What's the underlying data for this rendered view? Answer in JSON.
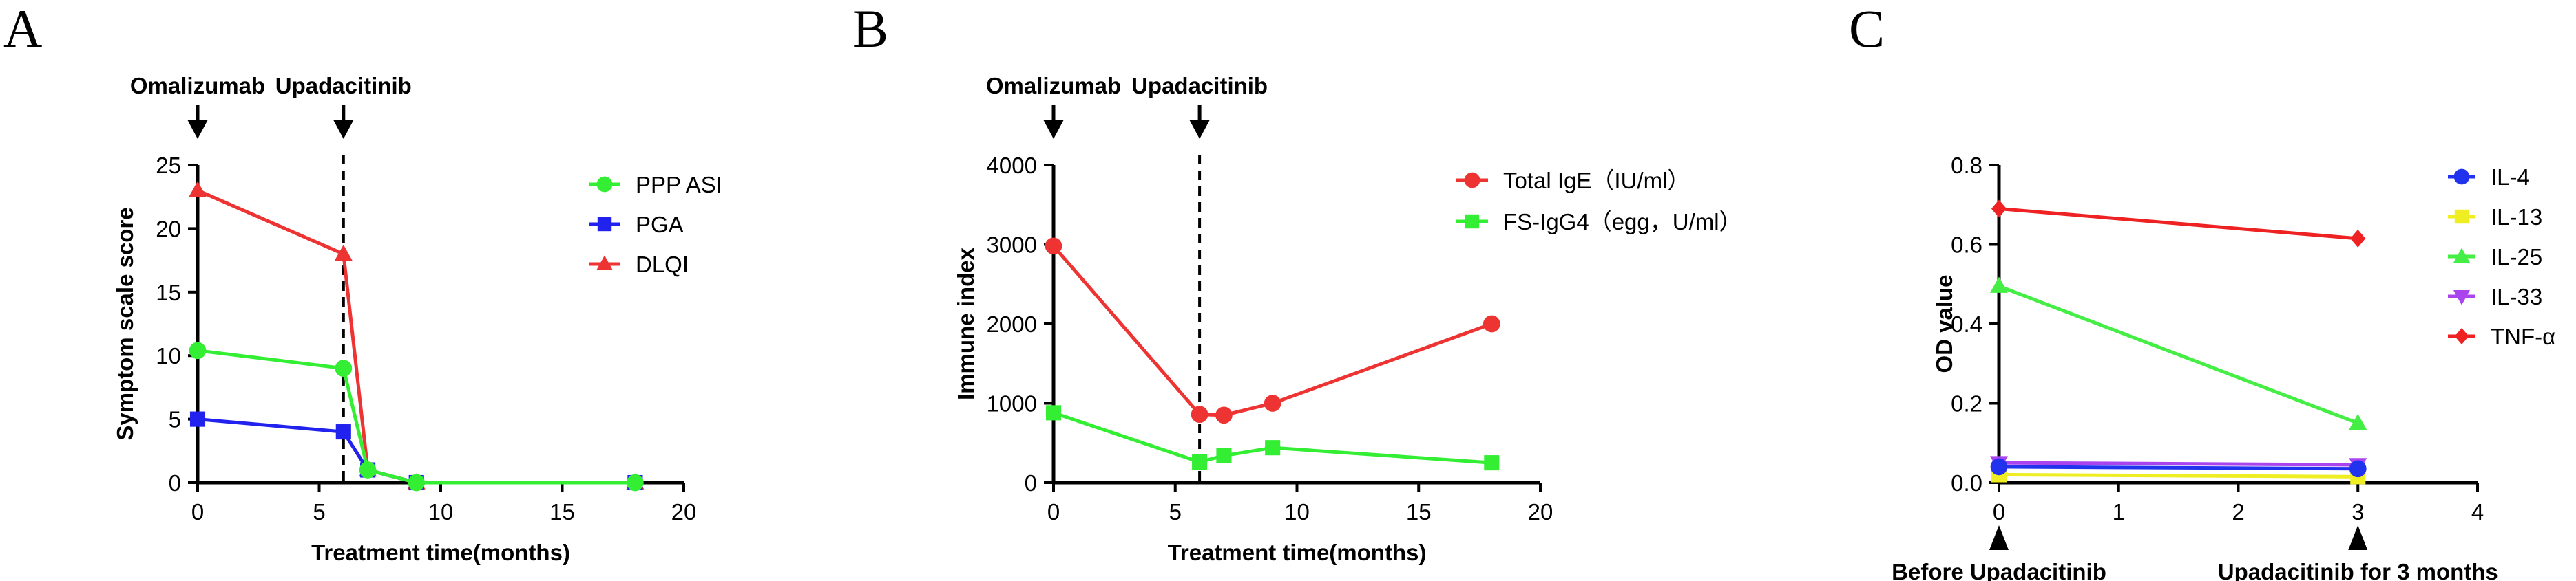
{
  "chart_data": [
    {
      "panel": "A",
      "type": "line",
      "xlabel": "Treatment time(months)",
      "ylabel": "Symptom scale score",
      "xlim": [
        0,
        20
      ],
      "ylim": [
        0,
        25
      ],
      "xticks": [
        0,
        5,
        10,
        15,
        20
      ],
      "yticks": [
        0,
        5,
        10,
        15,
        20,
        25
      ],
      "annotations": [
        {
          "label": "Omalizumab",
          "x": 0,
          "dashed": false
        },
        {
          "label": "Upadacitinib",
          "x": 6,
          "dashed": true
        }
      ],
      "series": [
        {
          "name": "PPP ASI",
          "color": "#33ee33",
          "marker": "circle",
          "x": [
            0,
            6,
            7,
            9,
            18
          ],
          "values": [
            10.4,
            9.0,
            1.0,
            0,
            0
          ]
        },
        {
          "name": "PGA",
          "color": "#2222ee",
          "marker": "square",
          "x": [
            0,
            6,
            7,
            9,
            18
          ],
          "values": [
            5.0,
            4.0,
            1.0,
            0,
            0
          ]
        },
        {
          "name": "DLQI",
          "color": "#ee3333",
          "marker": "triangle",
          "x": [
            0,
            6,
            7,
            9,
            18
          ],
          "values": [
            23.0,
            18.0,
            1.0,
            0,
            0
          ]
        }
      ],
      "draw_order": [
        2,
        1,
        0
      ]
    },
    {
      "panel": "B",
      "type": "line",
      "xlabel": "Treatment time(months)",
      "ylabel": "Immune index",
      "xlim": [
        0,
        20
      ],
      "ylim": [
        0,
        4000
      ],
      "xticks": [
        0,
        5,
        10,
        15,
        20
      ],
      "yticks": [
        0,
        1000,
        2000,
        3000,
        4000
      ],
      "annotations": [
        {
          "label": "Omalizumab",
          "x": 0,
          "dashed": false
        },
        {
          "label": "Upadacitinib",
          "x": 6,
          "dashed": true
        }
      ],
      "series": [
        {
          "name": "Total IgE（IU/ml）",
          "color": "#ee3333",
          "marker": "circle",
          "x": [
            0,
            6,
            7,
            9,
            18
          ],
          "values": [
            2980,
            860,
            850,
            1000,
            2000
          ]
        },
        {
          "name": "FS-IgG4（egg，U/ml）",
          "color": "#33ee33",
          "marker": "square",
          "x": [
            0,
            6,
            7,
            9,
            18
          ],
          "values": [
            880,
            260,
            340,
            440,
            250
          ]
        }
      ],
      "draw_order": [
        0,
        1
      ]
    },
    {
      "panel": "C",
      "type": "line",
      "xlabel": "",
      "ylabel": "OD value",
      "xlim": [
        0,
        4
      ],
      "ylim": [
        0,
        0.8
      ],
      "xticks": [
        0,
        1,
        2,
        3,
        4
      ],
      "yticks": [
        0.0,
        0.2,
        0.4,
        0.6,
        0.8
      ],
      "ytick_labels": [
        "0.0",
        "0.2",
        "0.4",
        "0.6",
        "0.8"
      ],
      "annotations": [
        {
          "label": "Before Upadacitinib",
          "x": 0,
          "below": true
        },
        {
          "label": "Upadacitinib for 3 months",
          "x": 3,
          "below": true
        }
      ],
      "series": [
        {
          "name": "IL-4",
          "color": "#2233ee",
          "marker": "circle",
          "x": [
            0,
            3
          ],
          "values": [
            0.04,
            0.035
          ]
        },
        {
          "name": "IL-13",
          "color": "#eeee22",
          "marker": "square",
          "x": [
            0,
            3
          ],
          "values": [
            0.02,
            0.015
          ]
        },
        {
          "name": "IL-25",
          "color": "#44ee44",
          "marker": "triangle",
          "x": [
            0,
            3
          ],
          "values": [
            0.495,
            0.15
          ]
        },
        {
          "name": "IL-33",
          "color": "#aa44ee",
          "marker": "invtriangle",
          "x": [
            0,
            3
          ],
          "values": [
            0.05,
            0.045
          ]
        },
        {
          "name": "TNF-α",
          "color": "#ee2222",
          "marker": "diamond",
          "x": [
            0,
            3
          ],
          "values": [
            0.69,
            0.615
          ]
        }
      ],
      "draw_order": [
        4,
        2,
        1,
        3,
        0
      ]
    }
  ],
  "panel_labels": [
    "A",
    "B",
    "C"
  ]
}
